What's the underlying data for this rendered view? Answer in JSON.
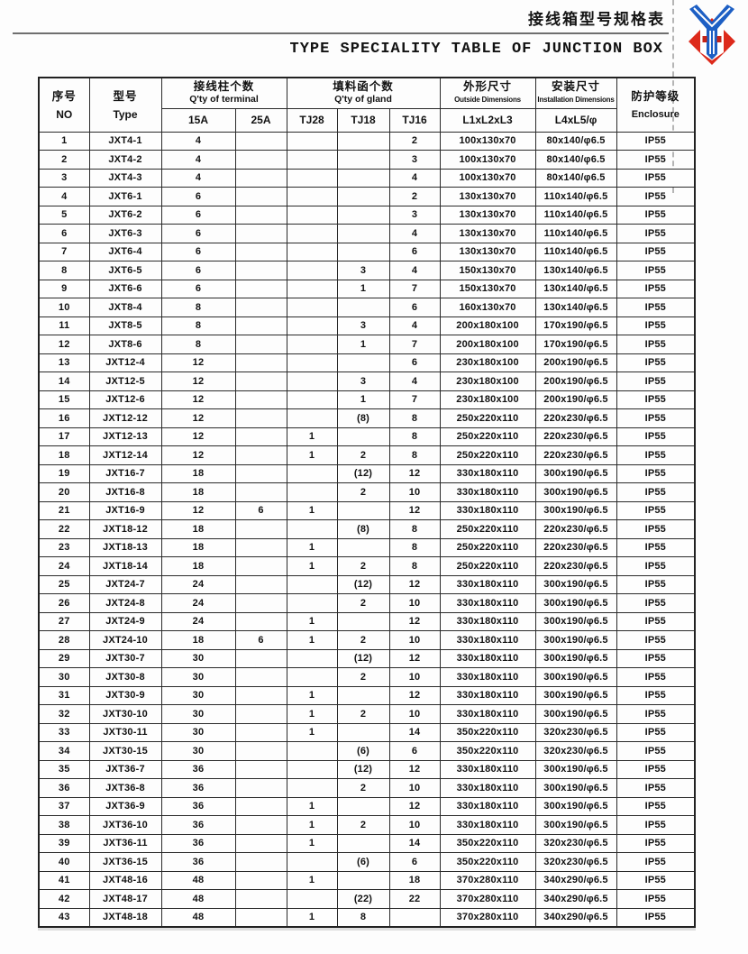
{
  "page": {
    "title_zh": "接线箱型号规格表",
    "title_en": "TYPE SPECIALITY TABLE OF JUNCTION BOX",
    "logo_colors": {
      "red": "#dd2a1b",
      "blue": "#1d5fc4",
      "white": "#ffffff"
    }
  },
  "table": {
    "headers": {
      "no_zh": "序号",
      "no_en": "NO",
      "type_zh": "型号",
      "type_en": "Type",
      "terminal_zh": "接线柱个数",
      "terminal_en": "Q'ty of terminal",
      "terminal_sub_1": "15A",
      "terminal_sub_2": "25A",
      "gland_zh": "填料函个数",
      "gland_en": "Q'ty of gland",
      "gland_sub_1": "TJ28",
      "gland_sub_2": "TJ18",
      "gland_sub_3": "TJ16",
      "outside_zh": "外形尺寸",
      "outside_en": "Outside Dimensions",
      "outside_sub": "L1xL2xL3",
      "install_zh": "安装尺寸",
      "install_en": "Installation Dimensions",
      "install_sub": "L4xL5/φ",
      "enclosure_zh": "防护等级",
      "enclosure_en": "Enclosure"
    },
    "rows": [
      [
        "1",
        "JXT4-1",
        "4",
        "",
        "",
        "",
        "2",
        "100x130x70",
        "80x140/φ6.5",
        "IP55"
      ],
      [
        "2",
        "JXT4-2",
        "4",
        "",
        "",
        "",
        "3",
        "100x130x70",
        "80x140/φ6.5",
        "IP55"
      ],
      [
        "3",
        "JXT4-3",
        "4",
        "",
        "",
        "",
        "4",
        "100x130x70",
        "80x140/φ6.5",
        "IP55"
      ],
      [
        "4",
        "JXT6-1",
        "6",
        "",
        "",
        "",
        "2",
        "130x130x70",
        "110x140/φ6.5",
        "IP55"
      ],
      [
        "5",
        "JXT6-2",
        "6",
        "",
        "",
        "",
        "3",
        "130x130x70",
        "110x140/φ6.5",
        "IP55"
      ],
      [
        "6",
        "JXT6-3",
        "6",
        "",
        "",
        "",
        "4",
        "130x130x70",
        "110x140/φ6.5",
        "IP55"
      ],
      [
        "7",
        "JXT6-4",
        "6",
        "",
        "",
        "",
        "6",
        "130x130x70",
        "110x140/φ6.5",
        "IP55"
      ],
      [
        "8",
        "JXT6-5",
        "6",
        "",
        "",
        "3",
        "4",
        "150x130x70",
        "130x140/φ6.5",
        "IP55"
      ],
      [
        "9",
        "JXT6-6",
        "6",
        "",
        "",
        "1",
        "7",
        "150x130x70",
        "130x140/φ6.5",
        "IP55"
      ],
      [
        "10",
        "JXT8-4",
        "8",
        "",
        "",
        "",
        "6",
        "160x130x70",
        "130x140/φ6.5",
        "IP55"
      ],
      [
        "11",
        "JXT8-5",
        "8",
        "",
        "",
        "3",
        "4",
        "200x180x100",
        "170x190/φ6.5",
        "IP55"
      ],
      [
        "12",
        "JXT8-6",
        "8",
        "",
        "",
        "1",
        "7",
        "200x180x100",
        "170x190/φ6.5",
        "IP55"
      ],
      [
        "13",
        "JXT12-4",
        "12",
        "",
        "",
        "",
        "6",
        "230x180x100",
        "200x190/φ6.5",
        "IP55"
      ],
      [
        "14",
        "JXT12-5",
        "12",
        "",
        "",
        "3",
        "4",
        "230x180x100",
        "200x190/φ6.5",
        "IP55"
      ],
      [
        "15",
        "JXT12-6",
        "12",
        "",
        "",
        "1",
        "7",
        "230x180x100",
        "200x190/φ6.5",
        "IP55"
      ],
      [
        "16",
        "JXT12-12",
        "12",
        "",
        "",
        "(8)",
        "8",
        "250x220x110",
        "220x230/φ6.5",
        "IP55"
      ],
      [
        "17",
        "JXT12-13",
        "12",
        "",
        "1",
        "",
        "8",
        "250x220x110",
        "220x230/φ6.5",
        "IP55"
      ],
      [
        "18",
        "JXT12-14",
        "12",
        "",
        "1",
        "2",
        "8",
        "250x220x110",
        "220x230/φ6.5",
        "IP55"
      ],
      [
        "19",
        "JXT16-7",
        "18",
        "",
        "",
        "(12)",
        "12",
        "330x180x110",
        "300x190/φ6.5",
        "IP55"
      ],
      [
        "20",
        "JXT16-8",
        "18",
        "",
        "",
        "2",
        "10",
        "330x180x110",
        "300x190/φ6.5",
        "IP55"
      ],
      [
        "21",
        "JXT16-9",
        "12",
        "6",
        "1",
        "",
        "12",
        "330x180x110",
        "300x190/φ6.5",
        "IP55"
      ],
      [
        "22",
        "JXT18-12",
        "18",
        "",
        "",
        "(8)",
        "8",
        "250x220x110",
        "220x230/φ6.5",
        "IP55"
      ],
      [
        "23",
        "JXT18-13",
        "18",
        "",
        "1",
        "",
        "8",
        "250x220x110",
        "220x230/φ6.5",
        "IP55"
      ],
      [
        "24",
        "JXT18-14",
        "18",
        "",
        "1",
        "2",
        "8",
        "250x220x110",
        "220x230/φ6.5",
        "IP55"
      ],
      [
        "25",
        "JXT24-7",
        "24",
        "",
        "",
        "(12)",
        "12",
        "330x180x110",
        "300x190/φ6.5",
        "IP55"
      ],
      [
        "26",
        "JXT24-8",
        "24",
        "",
        "",
        "2",
        "10",
        "330x180x110",
        "300x190/φ6.5",
        "IP55"
      ],
      [
        "27",
        "JXT24-9",
        "24",
        "",
        "1",
        "",
        "12",
        "330x180x110",
        "300x190/φ6.5",
        "IP55"
      ],
      [
        "28",
        "JXT24-10",
        "18",
        "6",
        "1",
        "2",
        "10",
        "330x180x110",
        "300x190/φ6.5",
        "IP55"
      ],
      [
        "29",
        "JXT30-7",
        "30",
        "",
        "",
        "(12)",
        "12",
        "330x180x110",
        "300x190/φ6.5",
        "IP55"
      ],
      [
        "30",
        "JXT30-8",
        "30",
        "",
        "",
        "2",
        "10",
        "330x180x110",
        "300x190/φ6.5",
        "IP55"
      ],
      [
        "31",
        "JXT30-9",
        "30",
        "",
        "1",
        "",
        "12",
        "330x180x110",
        "300x190/φ6.5",
        "IP55"
      ],
      [
        "32",
        "JXT30-10",
        "30",
        "",
        "1",
        "2",
        "10",
        "330x180x110",
        "300x190/φ6.5",
        "IP55"
      ],
      [
        "33",
        "JXT30-11",
        "30",
        "",
        "1",
        "",
        "14",
        "350x220x110",
        "320x230/φ6.5",
        "IP55"
      ],
      [
        "34",
        "JXT30-15",
        "30",
        "",
        "",
        "(6)",
        "6",
        "350x220x110",
        "320x230/φ6.5",
        "IP55"
      ],
      [
        "35",
        "JXT36-7",
        "36",
        "",
        "",
        "(12)",
        "12",
        "330x180x110",
        "300x190/φ6.5",
        "IP55"
      ],
      [
        "36",
        "JXT36-8",
        "36",
        "",
        "",
        "2",
        "10",
        "330x180x110",
        "300x190/φ6.5",
        "IP55"
      ],
      [
        "37",
        "JXT36-9",
        "36",
        "",
        "1",
        "",
        "12",
        "330x180x110",
        "300x190/φ6.5",
        "IP55"
      ],
      [
        "38",
        "JXT36-10",
        "36",
        "",
        "1",
        "2",
        "10",
        "330x180x110",
        "300x190/φ6.5",
        "IP55"
      ],
      [
        "39",
        "JXT36-11",
        "36",
        "",
        "1",
        "",
        "14",
        "350x220x110",
        "320x230/φ6.5",
        "IP55"
      ],
      [
        "40",
        "JXT36-15",
        "36",
        "",
        "",
        "(6)",
        "6",
        "350x220x110",
        "320x230/φ6.5",
        "IP55"
      ],
      [
        "41",
        "JXT48-16",
        "48",
        "",
        "1",
        "",
        "18",
        "370x280x110",
        "340x290/φ6.5",
        "IP55"
      ],
      [
        "42",
        "JXT48-17",
        "48",
        "",
        "",
        "(22)",
        "22",
        "370x280x110",
        "340x290/φ6.5",
        "IP55"
      ],
      [
        "43",
        "JXT48-18",
        "48",
        "",
        "1",
        "8",
        "",
        "370x280x110",
        "340x290/φ6.5",
        "IP55"
      ]
    ]
  }
}
